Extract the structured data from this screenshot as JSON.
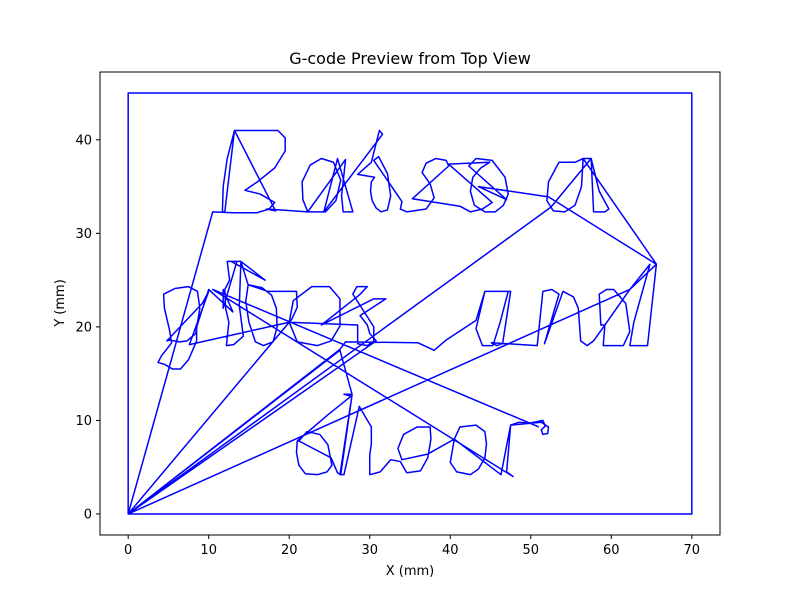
{
  "chart_data": {
    "type": "line",
    "title": "G-code Preview from Top View",
    "xlabel": "X (mm)",
    "ylabel": "Y (mm)",
    "xlim": [
      -3.5,
      73.5
    ],
    "ylim": [
      -2.25,
      47.25
    ],
    "xticks": [
      0,
      10,
      20,
      30,
      40,
      50,
      60,
      70
    ],
    "yticks": [
      0,
      10,
      20,
      30,
      40
    ],
    "grid": false,
    "line_color": "#0000ff",
    "series": [
      {
        "points": [
          [
            0,
            0
          ],
          [
            0,
            45
          ],
          [
            70,
            45
          ],
          [
            70,
            0
          ],
          [
            0,
            0
          ],
          [
            10.5,
            32.3
          ],
          [
            13,
            32.2
          ],
          [
            16,
            32.2
          ],
          [
            17.5,
            32.6
          ],
          [
            18.2,
            33.3
          ],
          [
            16.4,
            34.2
          ],
          [
            14.5,
            34.6
          ],
          [
            16.2,
            35.6
          ],
          [
            18.2,
            37
          ],
          [
            19.5,
            38.8
          ],
          [
            19.5,
            40.2
          ],
          [
            18.6,
            41
          ],
          [
            16.5,
            41
          ],
          [
            13.2,
            41
          ],
          [
            12.3,
            38
          ],
          [
            11.8,
            35
          ],
          [
            11.7,
            32.3
          ],
          [
            12,
            32.3
          ],
          [
            13.2,
            41
          ],
          [
            18.3,
            32.4
          ],
          [
            17.2,
            32.6
          ],
          [
            22.3,
            32.3
          ],
          [
            21.7,
            33.6
          ],
          [
            21.6,
            35.5
          ],
          [
            22.6,
            37.3
          ],
          [
            24,
            38
          ],
          [
            25.5,
            37.6
          ],
          [
            26.4,
            35.7
          ],
          [
            25.8,
            33.5
          ],
          [
            24.5,
            32.3
          ],
          [
            23.2,
            32.3
          ],
          [
            22.3,
            32.3
          ],
          [
            27,
            37.9
          ],
          [
            26.5,
            34
          ],
          [
            26.7,
            32.3
          ],
          [
            27.9,
            32.3
          ],
          [
            26,
            38
          ],
          [
            24.3,
            32.3
          ],
          [
            31.6,
            40.6
          ],
          [
            31.2,
            41
          ],
          [
            30.2,
            37.6
          ],
          [
            28.5,
            36.3
          ],
          [
            30.6,
            36
          ],
          [
            30.2,
            35.5
          ],
          [
            30.1,
            34.5
          ],
          [
            30.3,
            33.5
          ],
          [
            30.8,
            32.7
          ],
          [
            31.4,
            32.3
          ],
          [
            32.2,
            32.5
          ],
          [
            32.6,
            34
          ],
          [
            32.2,
            36.4
          ],
          [
            31.1,
            38.2
          ],
          [
            30.5,
            37.8
          ],
          [
            34,
            33.4
          ],
          [
            33.8,
            32.6
          ],
          [
            34.6,
            32.3
          ],
          [
            37,
            32.6
          ],
          [
            38,
            33.8
          ],
          [
            37.5,
            35.3
          ],
          [
            36.5,
            36.5
          ],
          [
            37,
            37.5
          ],
          [
            38.2,
            38
          ],
          [
            39.5,
            37.8
          ],
          [
            39.8,
            37.2
          ],
          [
            35.3,
            33.7
          ],
          [
            41.2,
            32.9
          ],
          [
            42.5,
            32.3
          ],
          [
            44,
            32.6
          ],
          [
            45.2,
            33.3
          ],
          [
            39.8,
            37.4
          ],
          [
            44.9,
            37.6
          ],
          [
            43.8,
            37
          ],
          [
            42.8,
            36
          ],
          [
            42.5,
            34.5
          ],
          [
            43,
            33
          ],
          [
            44.3,
            32.3
          ],
          [
            45.6,
            32.3
          ],
          [
            46.6,
            33
          ],
          [
            47.2,
            34.2
          ],
          [
            46.8,
            36
          ],
          [
            45.2,
            37.8
          ],
          [
            43.2,
            38
          ],
          [
            42.3,
            37.2
          ],
          [
            47,
            33.6
          ],
          [
            43.5,
            35
          ],
          [
            52.2,
            33.9
          ],
          [
            65.6,
            26.7
          ],
          [
            56.5,
            38
          ],
          [
            55.5,
            37.6
          ],
          [
            53.5,
            37.6
          ],
          [
            52.2,
            35.5
          ],
          [
            52,
            33.5
          ],
          [
            52.8,
            32.4
          ],
          [
            54.2,
            32.3
          ],
          [
            55.5,
            33
          ],
          [
            56.3,
            35
          ],
          [
            56.5,
            38
          ],
          [
            57.5,
            38
          ],
          [
            58.5,
            34.5
          ],
          [
            59.7,
            32.6
          ],
          [
            59.2,
            32.3
          ],
          [
            57.8,
            32.3
          ],
          [
            57.5,
            38
          ],
          [
            52.5,
            32.8
          ],
          [
            0,
            0
          ],
          [
            26.3,
            17.6
          ],
          [
            27,
            18.4
          ],
          [
            36,
            18.3
          ],
          [
            38,
            17.5
          ],
          [
            39.5,
            18.6
          ],
          [
            43.2,
            20.7
          ],
          [
            44.3,
            23.8
          ],
          [
            47.2,
            23.8
          ],
          [
            46.2,
            20.5
          ],
          [
            45.3,
            18
          ],
          [
            44,
            18
          ],
          [
            43.2,
            19.8
          ],
          [
            44.3,
            23.8
          ],
          [
            47.5,
            23.8
          ],
          [
            46.5,
            18.2
          ],
          [
            45.8,
            18
          ],
          [
            45.1,
            18.3
          ],
          [
            50.8,
            18
          ],
          [
            51.5,
            23.8
          ],
          [
            52.6,
            24
          ],
          [
            53.5,
            23.5
          ],
          [
            51.7,
            18.2
          ],
          [
            54,
            23.8
          ],
          [
            55.3,
            23.2
          ],
          [
            55.9,
            22
          ],
          [
            56.2,
            18.5
          ],
          [
            57,
            18
          ],
          [
            57.8,
            18.5
          ],
          [
            59.2,
            20.2
          ],
          [
            59,
            18
          ],
          [
            61.5,
            18
          ],
          [
            62.3,
            19.5
          ],
          [
            61.8,
            22.5
          ],
          [
            60.3,
            24
          ],
          [
            59.4,
            24
          ],
          [
            58.5,
            23.5
          ],
          [
            58.7,
            20.2
          ],
          [
            59.2,
            20.2
          ],
          [
            62.3,
            24
          ],
          [
            65.6,
            26.7
          ],
          [
            64.5,
            18
          ],
          [
            62.3,
            18
          ],
          [
            62.8,
            20.5
          ],
          [
            64.8,
            26.7
          ],
          [
            62.3,
            24
          ],
          [
            0,
            0
          ],
          [
            20.3,
            20.8
          ],
          [
            21,
            22.1
          ],
          [
            20.9,
            23.8
          ],
          [
            17.3,
            23.8
          ],
          [
            14.9,
            24.5
          ],
          [
            14.6,
            22.7
          ],
          [
            15,
            20.5
          ],
          [
            15.8,
            18.4
          ],
          [
            16.8,
            18
          ],
          [
            18,
            18.4
          ],
          [
            18.5,
            20
          ],
          [
            18.4,
            22
          ],
          [
            17.8,
            23.4
          ],
          [
            16.6,
            24.2
          ],
          [
            14.9,
            24.5
          ],
          [
            14,
            27
          ],
          [
            12.3,
            27
          ],
          [
            12.6,
            25
          ],
          [
            12,
            24
          ],
          [
            12.1,
            22
          ],
          [
            12.5,
            20.5
          ],
          [
            12.2,
            18
          ],
          [
            13.1,
            18.1
          ],
          [
            14.3,
            19
          ],
          [
            13.8,
            22.3
          ],
          [
            14,
            27
          ],
          [
            17,
            25
          ],
          [
            12.8,
            27
          ],
          [
            13.5,
            27
          ],
          [
            11.8,
            22
          ],
          [
            11.8,
            24
          ],
          [
            13,
            21.6
          ],
          [
            10,
            24
          ],
          [
            8.5,
            20
          ],
          [
            8.5,
            18.5
          ],
          [
            7.5,
            16.5
          ],
          [
            6.5,
            15.5
          ],
          [
            5.5,
            15.5
          ],
          [
            4.5,
            16
          ],
          [
            3.7,
            16.2
          ],
          [
            4.2,
            17
          ],
          [
            4.5,
            17.3
          ],
          [
            5.4,
            18.3
          ],
          [
            5.1,
            19.8
          ],
          [
            4.5,
            22
          ],
          [
            4.4,
            23.5
          ],
          [
            5.8,
            24.1
          ],
          [
            7.5,
            24.3
          ],
          [
            8.6,
            23.8
          ],
          [
            8.9,
            22
          ],
          [
            8.4,
            19.3
          ],
          [
            7.3,
            18.5
          ],
          [
            6.4,
            18.4
          ],
          [
            5.2,
            18.6
          ],
          [
            4.8,
            18.5
          ],
          [
            9.2,
            22.5
          ],
          [
            10,
            23.8
          ],
          [
            7.6,
            18.1
          ],
          [
            20,
            20.5
          ],
          [
            21,
            18.4
          ],
          [
            23.5,
            18
          ],
          [
            25.2,
            18.5
          ],
          [
            26.3,
            20.1
          ],
          [
            26.3,
            23
          ],
          [
            25,
            24.3
          ],
          [
            22.8,
            24.3
          ],
          [
            20.5,
            22.8
          ],
          [
            20,
            20.5
          ],
          [
            28.5,
            20.2
          ],
          [
            28.5,
            18.2
          ],
          [
            29.7,
            18
          ],
          [
            30.5,
            18.5
          ],
          [
            30.5,
            20
          ],
          [
            27.9,
            23.5
          ],
          [
            28.4,
            24.3
          ],
          [
            29.7,
            24.3
          ],
          [
            28.7,
            23.4
          ],
          [
            24,
            20.2
          ],
          [
            30.5,
            23
          ],
          [
            32,
            23
          ],
          [
            28.8,
            21.2
          ],
          [
            29.7,
            20.2
          ],
          [
            30,
            19.3
          ],
          [
            30.8,
            18.5
          ],
          [
            0,
            0
          ],
          [
            26.3,
            17.5
          ],
          [
            27.8,
            12.8
          ],
          [
            26.8,
            12.8
          ],
          [
            27.7,
            12.6
          ],
          [
            24.8,
            10.6
          ],
          [
            21,
            7.8
          ],
          [
            20.9,
            6.6
          ],
          [
            21.2,
            5.2
          ],
          [
            22,
            4.3
          ],
          [
            23.5,
            4.2
          ],
          [
            24.7,
            4.5
          ],
          [
            25.3,
            5.2
          ],
          [
            24.8,
            7.4
          ],
          [
            23.8,
            8.5
          ],
          [
            22.2,
            8.8
          ],
          [
            21.2,
            7.8
          ],
          [
            25.2,
            6
          ],
          [
            26,
            4.4
          ],
          [
            26.4,
            4.2
          ],
          [
            27.8,
            12.7
          ],
          [
            26.3,
            4.2
          ],
          [
            26.8,
            4.2
          ],
          [
            28.7,
            11.5
          ],
          [
            30.2,
            9.3
          ],
          [
            30.2,
            7.5
          ],
          [
            30,
            6.3
          ],
          [
            30,
            4.2
          ],
          [
            31.3,
            4.5
          ],
          [
            32.6,
            5.8
          ],
          [
            33.8,
            5.6
          ],
          [
            34.6,
            4.4
          ],
          [
            36.3,
            4.6
          ],
          [
            37.2,
            6
          ],
          [
            37.6,
            8
          ],
          [
            37.5,
            9.3
          ],
          [
            35.9,
            9.3
          ],
          [
            34.2,
            8.5
          ],
          [
            33.5,
            7
          ],
          [
            34,
            5.8
          ],
          [
            37.2,
            6.4
          ],
          [
            40.5,
            8
          ],
          [
            40,
            5.5
          ],
          [
            40.8,
            4.5
          ],
          [
            42.5,
            4.2
          ],
          [
            43.5,
            4.8
          ],
          [
            44.3,
            6
          ],
          [
            44.5,
            7.5
          ],
          [
            44.3,
            8.8
          ],
          [
            43.2,
            9.5
          ],
          [
            41.2,
            9.3
          ],
          [
            40.5,
            8
          ],
          [
            46.3,
            4.2
          ],
          [
            47.5,
            9.5
          ],
          [
            48.5,
            9.8
          ],
          [
            49.8,
            9.7
          ],
          [
            51.5,
            10
          ],
          [
            51.8,
            9.4
          ],
          [
            51.3,
            9
          ],
          [
            51.5,
            8.5
          ],
          [
            52.1,
            8.6
          ],
          [
            52.2,
            9.3
          ],
          [
            51.3,
            9.8
          ],
          [
            47.5,
            9.5
          ],
          [
            47,
            4.5
          ],
          [
            47.8,
            4
          ],
          [
            10.5,
            24
          ],
          [
            51,
            9.3
          ]
        ]
      }
    ]
  }
}
